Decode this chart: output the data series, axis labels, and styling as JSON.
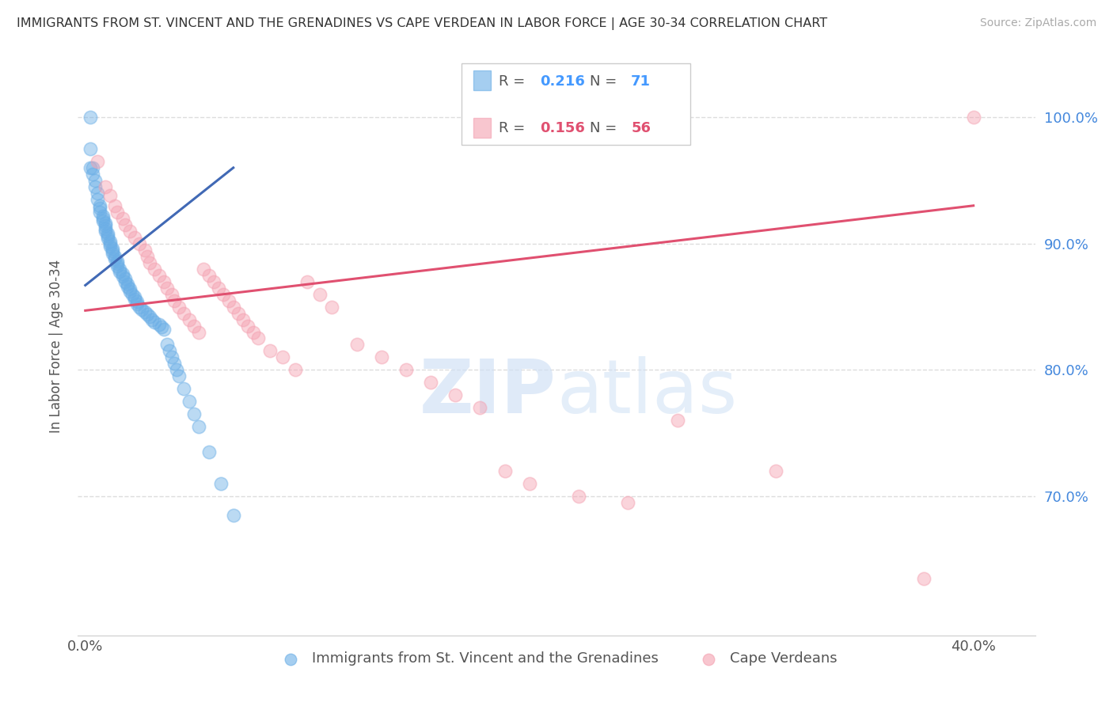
{
  "title": "IMMIGRANTS FROM ST. VINCENT AND THE GRENADINES VS CAPE VERDEAN IN LABOR FORCE | AGE 30-34 CORRELATION CHART",
  "source": "Source: ZipAtlas.com",
  "ylabel": "In Labor Force | Age 30-34",
  "legend1_r": "0.216",
  "legend1_n": "71",
  "legend2_r": "0.156",
  "legend2_n": "56",
  "legend1_label": "Immigrants from St. Vincent and the Grenadines",
  "legend2_label": "Cape Verdeans",
  "color_blue": "#6aaee6",
  "color_pink": "#f4a0b0",
  "line_blue": "#4169b5",
  "line_pink": "#e05070",
  "grid_color": "#dddddd",
  "bg_color": "#ffffff",
  "blue_scatter_x": [
    0.0002,
    0.0002,
    0.0002,
    0.0003,
    0.0003,
    0.0004,
    0.0004,
    0.0005,
    0.0005,
    0.0006,
    0.0006,
    0.0006,
    0.0007,
    0.0007,
    0.0007,
    0.0008,
    0.0008,
    0.0008,
    0.0008,
    0.0009,
    0.0009,
    0.0009,
    0.001,
    0.001,
    0.001,
    0.0011,
    0.0011,
    0.0011,
    0.0012,
    0.0012,
    0.0013,
    0.0013,
    0.0013,
    0.0014,
    0.0014,
    0.0015,
    0.0015,
    0.0016,
    0.0016,
    0.0017,
    0.0017,
    0.0018,
    0.0018,
    0.0019,
    0.002,
    0.002,
    0.0021,
    0.0021,
    0.0022,
    0.0023,
    0.0024,
    0.0025,
    0.0026,
    0.0027,
    0.0028,
    0.003,
    0.0031,
    0.0032,
    0.0033,
    0.0034,
    0.0035,
    0.0036,
    0.0037,
    0.0038,
    0.004,
    0.0042,
    0.0044,
    0.0046,
    0.005,
    0.0055,
    0.006
  ],
  "blue_scatter_y": [
    1.0,
    0.975,
    0.96,
    0.96,
    0.955,
    0.95,
    0.945,
    0.94,
    0.935,
    0.93,
    0.928,
    0.925,
    0.922,
    0.92,
    0.918,
    0.916,
    0.914,
    0.912,
    0.91,
    0.908,
    0.906,
    0.904,
    0.902,
    0.9,
    0.898,
    0.896,
    0.894,
    0.892,
    0.89,
    0.888,
    0.886,
    0.884,
    0.882,
    0.88,
    0.878,
    0.876,
    0.874,
    0.872,
    0.87,
    0.868,
    0.866,
    0.864,
    0.862,
    0.86,
    0.858,
    0.856,
    0.854,
    0.852,
    0.85,
    0.848,
    0.846,
    0.844,
    0.842,
    0.84,
    0.838,
    0.836,
    0.834,
    0.832,
    0.82,
    0.815,
    0.81,
    0.805,
    0.8,
    0.795,
    0.785,
    0.775,
    0.765,
    0.755,
    0.735,
    0.71,
    0.685
  ],
  "pink_scatter_x": [
    0.0005,
    0.0008,
    0.001,
    0.0012,
    0.0013,
    0.0015,
    0.0016,
    0.0018,
    0.002,
    0.0022,
    0.0024,
    0.0025,
    0.0026,
    0.0028,
    0.003,
    0.0032,
    0.0033,
    0.0035,
    0.0036,
    0.0038,
    0.004,
    0.0042,
    0.0044,
    0.0046,
    0.0048,
    0.005,
    0.0052,
    0.0054,
    0.0056,
    0.0058,
    0.006,
    0.0062,
    0.0064,
    0.0066,
    0.0068,
    0.007,
    0.0075,
    0.008,
    0.0085,
    0.009,
    0.0095,
    0.01,
    0.011,
    0.012,
    0.013,
    0.014,
    0.015,
    0.016,
    0.017,
    0.018,
    0.02,
    0.022,
    0.024,
    0.028,
    0.034,
    0.036
  ],
  "pink_scatter_y": [
    0.965,
    0.945,
    0.938,
    0.93,
    0.925,
    0.92,
    0.915,
    0.91,
    0.905,
    0.9,
    0.895,
    0.89,
    0.885,
    0.88,
    0.875,
    0.87,
    0.865,
    0.86,
    0.855,
    0.85,
    0.845,
    0.84,
    0.835,
    0.83,
    0.88,
    0.875,
    0.87,
    0.865,
    0.86,
    0.855,
    0.85,
    0.845,
    0.84,
    0.835,
    0.83,
    0.825,
    0.815,
    0.81,
    0.8,
    0.87,
    0.86,
    0.85,
    0.82,
    0.81,
    0.8,
    0.79,
    0.78,
    0.77,
    0.72,
    0.71,
    0.7,
    0.695,
    0.76,
    0.72,
    0.635,
    1.0
  ],
  "blue_trendline_x": [
    0.0,
    0.006
  ],
  "blue_trendline_y": [
    0.867,
    0.96
  ],
  "pink_trendline_x": [
    0.0,
    0.036
  ],
  "pink_trendline_y": [
    0.847,
    0.93
  ],
  "xlim": [
    -0.0003,
    0.0385
  ],
  "ylim": [
    0.59,
    1.048
  ],
  "yticks": [
    0.7,
    0.8,
    0.9,
    1.0
  ],
  "ytick_labels_right": [
    "70.0%",
    "80.0%",
    "90.0%",
    "100.0%"
  ],
  "xtick_left_label": "0.0%",
  "xtick_right_label": "40.0%"
}
